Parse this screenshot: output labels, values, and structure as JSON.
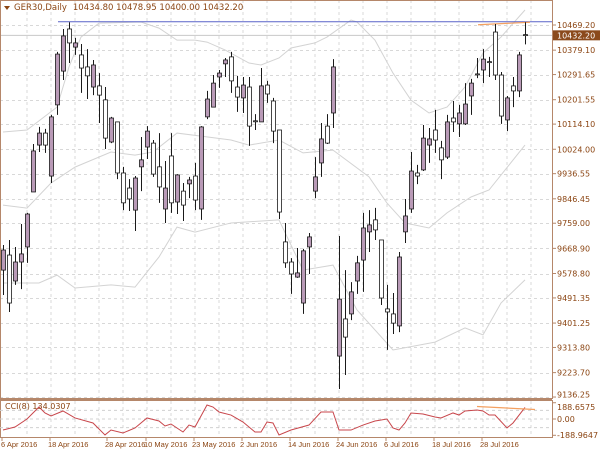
{
  "header": {
    "symbol": "GER30,Daily",
    "open": "10434.80",
    "high": "10478.95",
    "low": "10400.00",
    "close": "10432.20"
  },
  "bid_label": "10432.20",
  "price_axis_labels": [
    "10469.20",
    "10379.10",
    "10291.65",
    "10201.55",
    "10114.10",
    "10024.00",
    "9936.55",
    "9846.45",
    "9759.00",
    "9668.90",
    "9578.80",
    "9491.35",
    "9401.25",
    "9313.80",
    "9223.70",
    "9136.25"
  ],
  "cci": {
    "label": "CCI(8)",
    "value": "134.0307",
    "axis_labels": {
      "top": "188.6575",
      "zero": "0.00",
      "bottom": "-188.9647"
    },
    "points": [
      [
        0,
        -128
      ],
      [
        2,
        -93
      ],
      [
        4,
        0
      ],
      [
        6,
        139
      ],
      [
        7,
        70
      ],
      [
        8,
        35
      ],
      [
        10,
        93
      ],
      [
        12,
        12
      ],
      [
        15,
        -46
      ],
      [
        17,
        -185
      ],
      [
        18,
        -128
      ],
      [
        20,
        -162
      ],
      [
        22,
        -104
      ],
      [
        24,
        12
      ],
      [
        26,
        -23
      ],
      [
        27,
        -81
      ],
      [
        28,
        -58
      ],
      [
        30,
        -151
      ],
      [
        31,
        -70
      ],
      [
        32,
        -93
      ],
      [
        34,
        162
      ],
      [
        35,
        139
      ],
      [
        36,
        81
      ],
      [
        38,
        46
      ],
      [
        40,
        -35
      ],
      [
        42,
        -151
      ],
      [
        43,
        -151
      ],
      [
        44,
        -35
      ],
      [
        45,
        -46
      ],
      [
        46,
        -185
      ],
      [
        48,
        -128
      ],
      [
        51,
        -70
      ],
      [
        53,
        81
      ],
      [
        55,
        81
      ],
      [
        56,
        -128
      ],
      [
        58,
        -128
      ],
      [
        60,
        -70
      ],
      [
        62,
        -23
      ],
      [
        64,
        0
      ],
      [
        65,
        -104
      ],
      [
        66,
        -128
      ],
      [
        67,
        -46
      ],
      [
        68,
        70
      ],
      [
        70,
        58
      ],
      [
        72,
        23
      ],
      [
        73,
        12
      ],
      [
        75,
        70
      ],
      [
        76,
        46
      ],
      [
        77,
        93
      ],
      [
        79,
        104
      ],
      [
        80,
        93
      ],
      [
        81,
        46
      ],
      [
        82,
        46
      ],
      [
        84,
        -104
      ],
      [
        85,
        -46
      ],
      [
        87,
        134
      ]
    ]
  },
  "date_labels": [
    {
      "text": "6 Apr 2016",
      "bar": 0
    },
    {
      "text": "18 Apr 2016",
      "bar": 8
    },
    {
      "text": "28 Apr 2016",
      "bar": 17.5
    },
    {
      "text": "10 May 2016",
      "bar": 24
    },
    {
      "text": "23 May 2016",
      "bar": 32
    },
    {
      "text": "2 Jun 2016",
      "bar": 40
    },
    {
      "text": "14 Jun 2016",
      "bar": 48
    },
    {
      "text": "24 Jun 2016",
      "bar": 56
    },
    {
      "text": "6 Jul 2016",
      "bar": 64
    },
    {
      "text": "18 Jul 2016",
      "bar": 72
    },
    {
      "text": "28 Jul 2016",
      "bar": 80
    }
  ],
  "colors": {
    "bull_fill": "#b99ab7",
    "bear_fill": "#ffffff",
    "candle_outline": "#1a1a1a",
    "band": "#d3d3d3",
    "high_line": "#5a64c8",
    "trend_line": "#f4a060",
    "cci_line": "#c8464b",
    "axis_text": "#8b4513",
    "bid_bg": "#8b4a1c",
    "border": "#b5876a"
  },
  "chart_data": {
    "type": "candlestick",
    "symbol": "GER30",
    "timeframe": "Daily",
    "ylim": [
      9136.25,
      10469.2
    ],
    "grid": true,
    "high_line": 10481,
    "trend_line": [
      [
        80,
        10470
      ],
      [
        87,
        10479
      ]
    ],
    "candles_ohlc": [
      [
        9591,
        9681,
        9502,
        9663
      ],
      [
        9645,
        9699,
        9441,
        9473
      ],
      [
        9552,
        9674,
        9538,
        9620
      ],
      [
        9620,
        9756,
        9523,
        9649
      ],
      [
        9674,
        9796,
        9617,
        9792
      ],
      [
        9871,
        10043,
        9871,
        10018
      ],
      [
        10039,
        10104,
        10014,
        10082
      ],
      [
        10082,
        10097,
        10011,
        10039
      ],
      [
        9928,
        10147,
        9903,
        10140
      ],
      [
        10183,
        10373,
        10147,
        10365
      ],
      [
        10304,
        10455,
        10272,
        10430
      ],
      [
        10455,
        10479,
        10333,
        10405
      ],
      [
        10390,
        10423,
        10362,
        10405
      ],
      [
        10362,
        10401,
        10226,
        10315
      ],
      [
        10319,
        10383,
        10204,
        10287
      ],
      [
        10247,
        10344,
        10218,
        10326
      ],
      [
        10251,
        10297,
        10118,
        10218
      ],
      [
        10201,
        10247,
        10025,
        10064
      ],
      [
        10050,
        10140,
        10046,
        10136
      ],
      [
        10122,
        10122,
        9917,
        9939
      ],
      [
        9939,
        9961,
        9806,
        9832
      ],
      [
        9885,
        9917,
        9803,
        9846
      ],
      [
        9806,
        9928,
        9731,
        9921
      ],
      [
        9961,
        10068,
        9874,
        9986
      ],
      [
        10032,
        10107,
        9989,
        10089
      ],
      [
        10046,
        10057,
        9925,
        9935
      ],
      [
        9961,
        10082,
        9832,
        9889
      ],
      [
        9810,
        9982,
        9760,
        9885
      ],
      [
        10000,
        10082,
        9796,
        9832
      ],
      [
        9835,
        9935,
        9792,
        9932
      ],
      [
        9874,
        9903,
        9767,
        9824
      ],
      [
        9900,
        9925,
        9849,
        9914
      ],
      [
        9928,
        9975,
        9806,
        9842
      ],
      [
        9810,
        10107,
        9771,
        10104
      ],
      [
        10140,
        10233,
        10132,
        10204
      ],
      [
        10175,
        10290,
        10175,
        10261
      ],
      [
        10283,
        10308,
        10244,
        10297
      ],
      [
        10330,
        10351,
        10283,
        10344
      ],
      [
        10355,
        10373,
        10226,
        10269
      ],
      [
        10247,
        10287,
        10158,
        10211
      ],
      [
        10208,
        10283,
        10154,
        10254
      ],
      [
        10247,
        10283,
        10036,
        10107
      ],
      [
        10126,
        10150,
        10093,
        10124
      ],
      [
        10122,
        10315,
        10122,
        10251
      ],
      [
        10254,
        10269,
        10190,
        10222
      ],
      [
        10197,
        10208,
        10046,
        10089
      ],
      [
        10093,
        10093,
        9774,
        9799
      ],
      [
        9692,
        9760,
        9599,
        9617
      ],
      [
        9620,
        9634,
        9506,
        9577
      ],
      [
        9566,
        9670,
        9563,
        9581
      ],
      [
        9473,
        9667,
        9434,
        9660
      ],
      [
        9674,
        9724,
        9577,
        9710
      ],
      [
        9874,
        9996,
        9849,
        9925
      ],
      [
        9975,
        10118,
        9925,
        10061
      ],
      [
        10107,
        10150,
        10043,
        10046
      ],
      [
        10154,
        10347,
        10100,
        10319
      ],
      [
        9283,
        9713,
        9165,
        9487
      ],
      [
        9416,
        9591,
        9215,
        9351
      ],
      [
        9434,
        9548,
        9412,
        9513
      ],
      [
        9552,
        9642,
        9506,
        9617
      ],
      [
        9627,
        9796,
        9513,
        9742
      ],
      [
        9728,
        9806,
        9656,
        9753
      ],
      [
        9771,
        9814,
        9699,
        9735
      ],
      [
        9699,
        9699,
        9466,
        9491
      ],
      [
        9452,
        9538,
        9305,
        9441
      ],
      [
        9434,
        9509,
        9362,
        9401
      ],
      [
        9391,
        9656,
        9369,
        9638
      ],
      [
        9728,
        9846,
        9688,
        9785
      ],
      [
        9810,
        10014,
        9796,
        9946
      ],
      [
        9939,
        9968,
        9899,
        9928
      ],
      [
        9950,
        10111,
        9946,
        10064
      ],
      [
        10039,
        10100,
        9975,
        10061
      ],
      [
        10093,
        10165,
        10011,
        10057
      ],
      [
        10029,
        10054,
        9917,
        9986
      ],
      [
        9996,
        10147,
        9989,
        10122
      ],
      [
        10136,
        10197,
        10086,
        10122
      ],
      [
        10115,
        10183,
        10068,
        10154
      ],
      [
        10115,
        10261,
        10111,
        10186
      ],
      [
        10215,
        10276,
        10147,
        10261
      ],
      [
        10294,
        10351,
        10279,
        10293
      ],
      [
        10308,
        10383,
        10261,
        10347
      ],
      [
        10338,
        10355,
        10283,
        10336
      ],
      [
        10444,
        10473,
        10272,
        10290
      ],
      [
        10290,
        10301,
        10115,
        10143
      ],
      [
        10129,
        10215,
        10089,
        10208
      ],
      [
        10251,
        10283,
        10175,
        10233
      ],
      [
        10233,
        10373,
        10211,
        10362
      ],
      [
        10434.8,
        10478.95,
        10400,
        10432.2
      ]
    ],
    "bollinger": {
      "upper": [
        [
          0,
          10086
        ],
        [
          4,
          10093
        ],
        [
          9,
          10175
        ],
        [
          11,
          10319
        ],
        [
          13,
          10426
        ],
        [
          16,
          10476
        ],
        [
          23,
          10480
        ],
        [
          26,
          10458
        ],
        [
          29,
          10415
        ],
        [
          32,
          10415
        ],
        [
          34,
          10408
        ],
        [
          37,
          10380
        ],
        [
          41,
          10333
        ],
        [
          43,
          10326
        ],
        [
          46,
          10351
        ],
        [
          48,
          10387
        ],
        [
          52,
          10405
        ],
        [
          54,
          10426
        ],
        [
          58,
          10487
        ],
        [
          59,
          10480
        ],
        [
          62,
          10415
        ],
        [
          65,
          10297
        ],
        [
          68,
          10200
        ],
        [
          71,
          10154
        ],
        [
          74,
          10175
        ],
        [
          77,
          10247
        ],
        [
          80,
          10369
        ],
        [
          83,
          10426
        ],
        [
          87,
          10523
        ]
      ],
      "middle": [
        [
          0,
          9824
        ],
        [
          4,
          9813
        ],
        [
          8,
          9903
        ],
        [
          12,
          9960
        ],
        [
          18,
          10014
        ],
        [
          22,
          10003
        ],
        [
          25,
          10014
        ],
        [
          29,
          10082
        ],
        [
          33,
          10071
        ],
        [
          38,
          10057
        ],
        [
          41,
          10039
        ],
        [
          46,
          10057
        ],
        [
          50,
          10011
        ],
        [
          55,
          10021
        ],
        [
          61,
          9925
        ],
        [
          64,
          9831
        ],
        [
          67,
          9760
        ],
        [
          71,
          9742
        ],
        [
          74,
          9796
        ],
        [
          78,
          9853
        ],
        [
          81,
          9878
        ],
        [
          87,
          10039
        ]
      ],
      "lower": [
        [
          0,
          9545
        ],
        [
          6,
          9545
        ],
        [
          9,
          9573
        ],
        [
          12,
          9527
        ],
        [
          18,
          9538
        ],
        [
          22,
          9530
        ],
        [
          26,
          9638
        ],
        [
          29,
          9745
        ],
        [
          32,
          9727
        ],
        [
          38,
          9760
        ],
        [
          46,
          9771
        ],
        [
          50,
          9591
        ],
        [
          55,
          9609
        ],
        [
          59,
          9448
        ],
        [
          65,
          9305
        ],
        [
          72,
          9333
        ],
        [
          77,
          9384
        ],
        [
          80,
          9359
        ],
        [
          83,
          9473
        ],
        [
          87,
          9556
        ]
      ]
    },
    "cci_ylim": [
      -188.9647,
      188.6575
    ],
    "cci_levels": [
      100,
      0,
      -100
    ]
  }
}
